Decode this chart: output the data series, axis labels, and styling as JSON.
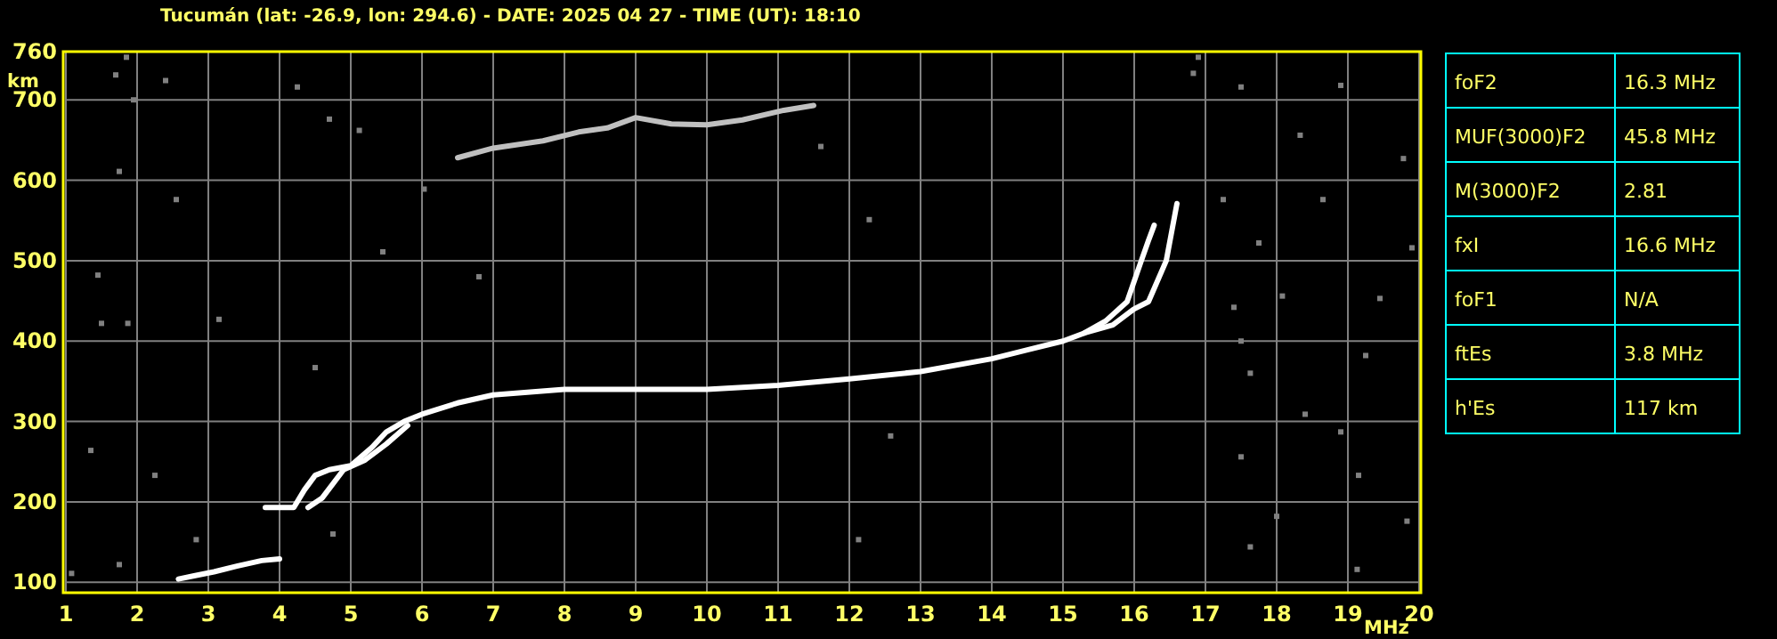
{
  "chart_data": [
    {
      "type": "line",
      "title": "Tucumán (lat: -26.9, lon: 294.6) - DATE: 2025 04 27 - TIME (UT): 18:10",
      "xlabel": "MHz",
      "ylabel": "km",
      "xlim": [
        1,
        20
      ],
      "ylim": [
        87,
        760
      ],
      "xticks": [
        1,
        2,
        3,
        4,
        5,
        6,
        7,
        8,
        9,
        10,
        11,
        12,
        13,
        14,
        15,
        16,
        17,
        18,
        19,
        20
      ],
      "yticks": [
        100,
        200,
        300,
        400,
        500,
        600,
        700,
        760
      ],
      "grid": true,
      "series": [
        {
          "color": "#ffffff",
          "x": [
            2.58,
            2.8,
            3.08,
            3.4,
            3.75,
            4.0
          ],
          "values": [
            104,
            108,
            113,
            120,
            127,
            129
          ]
        },
        {
          "color": "#ffffff",
          "x": [
            3.8,
            4.0,
            4.2,
            4.35,
            4.5,
            4.7,
            5.0,
            5.3,
            5.5,
            5.75,
            6.0,
            6.5,
            7.0,
            8.0,
            9.0,
            10.0,
            11.0,
            12.0,
            13.0,
            14.0,
            14.5,
            15.0,
            15.3,
            15.6,
            15.9,
            16.1,
            16.2,
            16.28
          ],
          "values": [
            193,
            193,
            193,
            215,
            233,
            240,
            245,
            268,
            287,
            300,
            309,
            323,
            333,
            340,
            340,
            340,
            345,
            353,
            362,
            378,
            389,
            400,
            410,
            425,
            449,
            500,
            525,
            544
          ]
        },
        {
          "color": "#ffffff",
          "x": [
            4.4,
            4.6,
            4.9,
            5.2,
            5.5,
            5.8
          ],
          "values": [
            193,
            205,
            240,
            252,
            272,
            295
          ]
        },
        {
          "color": "#ffffff",
          "x": [
            15.3,
            15.7,
            16.0,
            16.2,
            16.45,
            16.6
          ],
          "values": [
            410,
            420,
            440,
            449,
            500,
            571
          ]
        },
        {
          "color": "#c0c0c0",
          "x": [
            6.5,
            7.0,
            7.7,
            8.2,
            8.6,
            9.0,
            9.5,
            10.0,
            10.5,
            11.08,
            11.5
          ],
          "values": [
            628,
            640,
            649,
            660,
            665,
            678,
            670,
            669,
            675,
            687,
            693
          ]
        },
        {
          "type": "scatter",
          "marker": "square",
          "color": "#808080",
          "x": [
            1.85,
            1.7,
            2.4,
            1.95,
            1.75,
            2.55,
            1.45,
            1.5,
            1.87,
            1.35,
            2.25,
            4.25,
            4.7,
            5.12,
            6.03,
            5.45,
            6.8,
            4.5,
            3.15,
            2.83,
            1.75,
            1.08,
            4.75,
            16.83,
            17.5,
            18.9,
            18.33,
            19.78,
            17.25,
            18.65,
            17.75,
            17.4,
            18.08,
            19.45,
            17.5,
            19.25,
            17.63,
            18.4,
            18.9,
            17.5,
            19.15,
            18.0,
            19.83,
            17.63,
            19.13,
            12.13,
            12.58,
            12.28,
            11.6,
            16.9,
            19.9
          ],
          "values": [
            753,
            731,
            724,
            700,
            611,
            576,
            482,
            422,
            422,
            264,
            233,
            716,
            676,
            662,
            589,
            511,
            480,
            367,
            427,
            153,
            122,
            111,
            160,
            733,
            716,
            718,
            656,
            627,
            576,
            576,
            522,
            442,
            456,
            453,
            400,
            382,
            360,
            309,
            287,
            256,
            233,
            182,
            176,
            144,
            116,
            153,
            282,
            551,
            642,
            753,
            516
          ]
        }
      ]
    },
    {
      "type": "other",
      "categories": [
        "foF2",
        "MUF(3000)F2",
        "M(3000)F2",
        "fxI",
        "foF1",
        "ftEs",
        "h'Es"
      ],
      "value_labels": [
        "16.3 MHz",
        "45.8 MHz",
        "2.81",
        "16.6 MHz",
        "N/A",
        "3.8 MHz",
        "117 km"
      ]
    }
  ]
}
